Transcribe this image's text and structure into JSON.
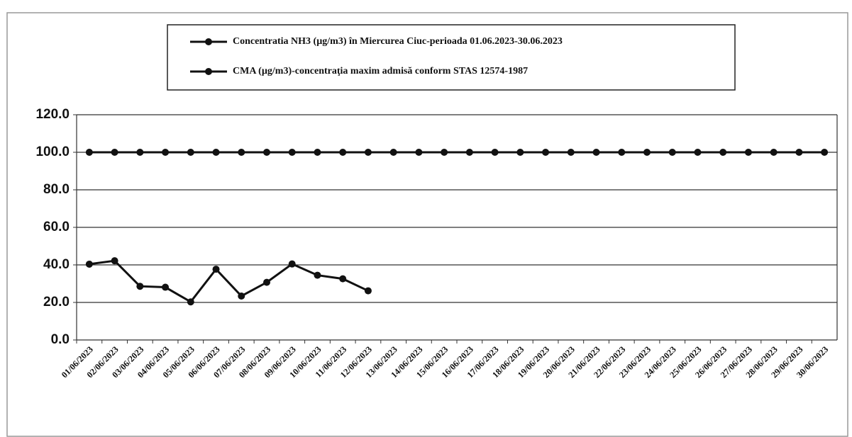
{
  "chart_data": {
    "type": "line",
    "categories": [
      "01/06/2023",
      "02/06/2023",
      "03/06/2023",
      "04/06/2023",
      "05/06/2023",
      "06/06/2023",
      "07/06/2023",
      "08/06/2023",
      "09/06/2023",
      "10/06/2023",
      "11/06/2023",
      "12/06/2023",
      "13/06/2023",
      "14/06/2023",
      "15/06/2023",
      "16/06/2023",
      "17/06/2023",
      "18/06/2023",
      "19/06/2023",
      "20/06/2023",
      "21/06/2023",
      "22/06/2023",
      "23/06/2023",
      "24/06/2023",
      "25/06/2023",
      "26/06/2023",
      "27/06/2023",
      "28/06/2023",
      "29/06/2023",
      "30/06/2023"
    ],
    "series": [
      {
        "name": "Concentratia NH3 (µg/m3) în Miercurea Ciuc-perioada 01.06.2023-30.06.2023",
        "color": "#111111",
        "values": [
          40.4,
          42.2,
          28.6,
          28.1,
          20.3,
          37.7,
          23.4,
          30.7,
          40.5,
          34.5,
          32.6,
          26.2,
          null,
          null,
          null,
          null,
          null,
          null,
          null,
          null,
          null,
          null,
          null,
          null,
          null,
          null,
          null,
          null,
          null,
          null
        ]
      },
      {
        "name": "CMA (µg/m3)-concentraţia maxim admisă conform STAS 12574-1987",
        "color": "#111111",
        "values": [
          100,
          100,
          100,
          100,
          100,
          100,
          100,
          100,
          100,
          100,
          100,
          100,
          100,
          100,
          100,
          100,
          100,
          100,
          100,
          100,
          100,
          100,
          100,
          100,
          100,
          100,
          100,
          100,
          100,
          100
        ]
      }
    ],
    "ylim": [
      0,
      120
    ],
    "yticks": [
      {
        "value": 0,
        "label": "0.0"
      },
      {
        "value": 20,
        "label": "20.0"
      },
      {
        "value": 40,
        "label": "40.0"
      },
      {
        "value": 60,
        "label": "60.0"
      },
      {
        "value": 80,
        "label": "80.0"
      },
      {
        "value": 100,
        "label": "100.0"
      },
      {
        "value": 120,
        "label": "120.0"
      }
    ],
    "grid": true,
    "legend": "top"
  }
}
